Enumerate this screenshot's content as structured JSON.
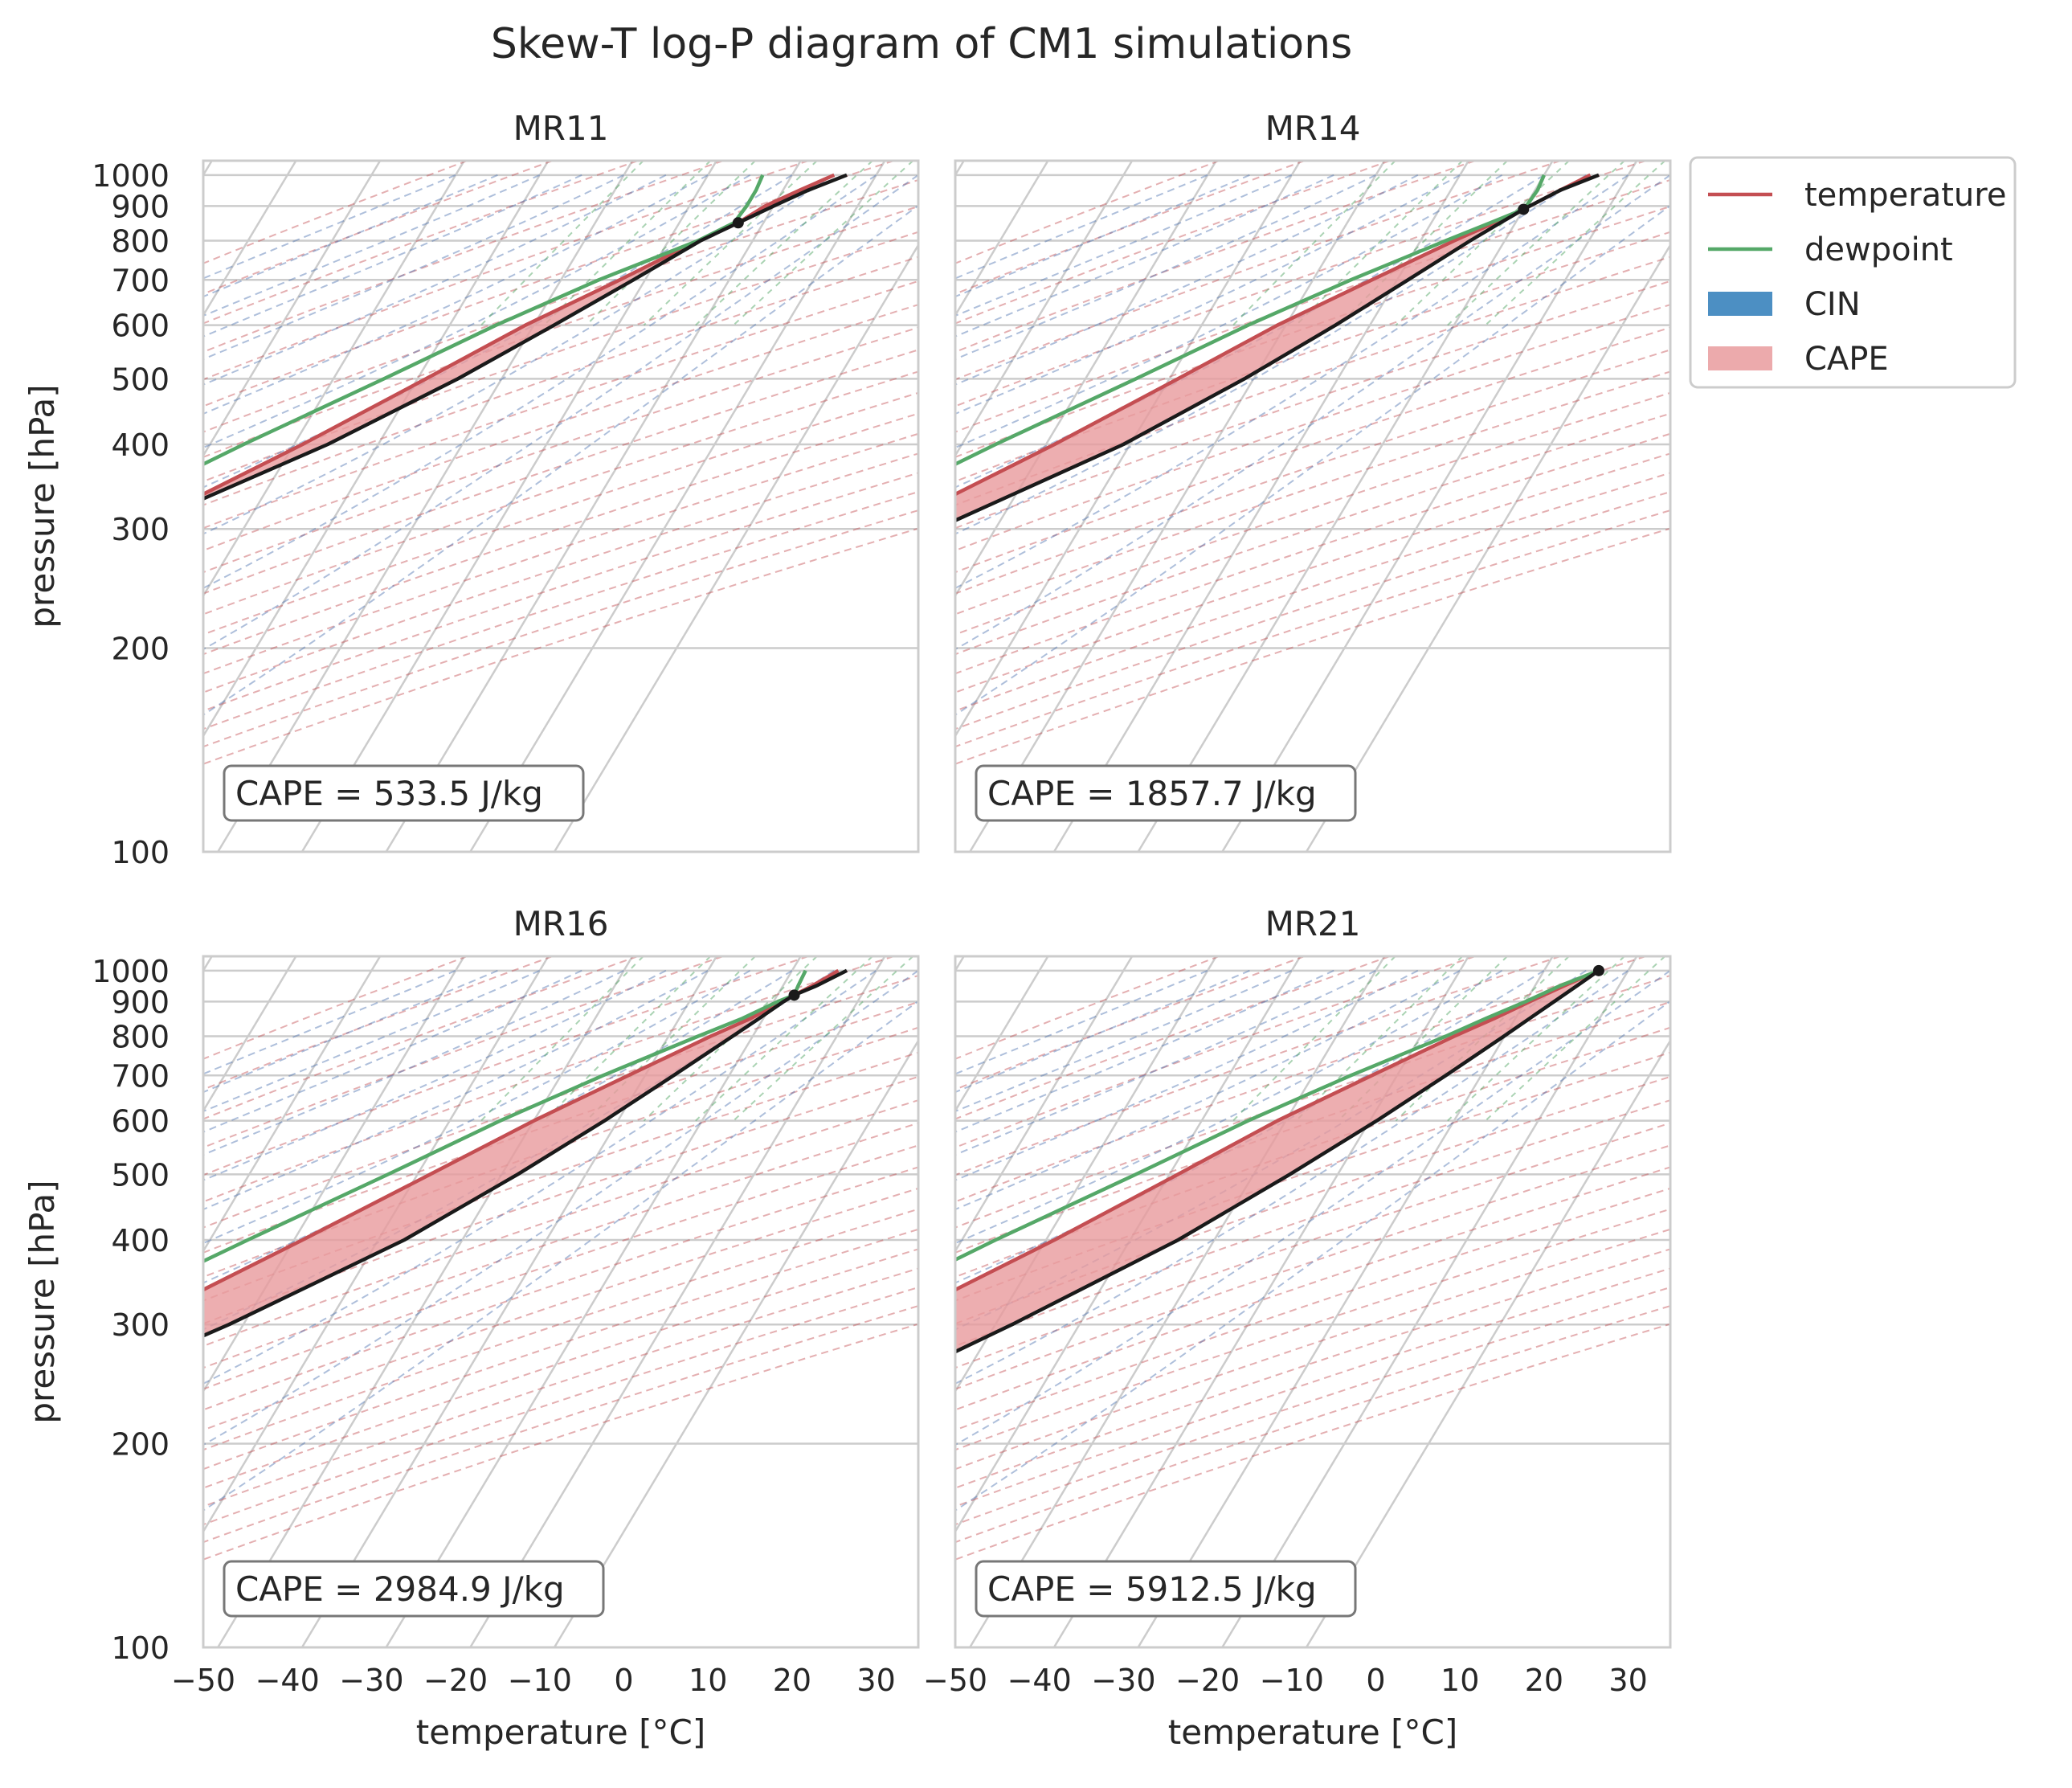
{
  "figure": {
    "title": "Skew-T log-P diagram of CM1 simulations"
  },
  "legend": {
    "placement": "right of top-right panel",
    "entries": [
      {
        "label": "temperature",
        "kind": "line",
        "color": "#c44e52"
      },
      {
        "label": "dewpoint",
        "kind": "line",
        "color": "#55a868"
      },
      {
        "label": "CIN",
        "kind": "patch",
        "color": "#4c8fc3"
      },
      {
        "label": "CAPE",
        "kind": "patch",
        "color": "#eba5a8"
      }
    ]
  },
  "colors": {
    "temperature": "#c44e52",
    "dewpoint": "#55a868",
    "parcel": "#1a1a1a",
    "cape_fill": "#e89a9c",
    "cape_edge": "#c44e52",
    "grid": "#cccccc",
    "dry_adiabat": "#c44e52",
    "moist_adiabat": "#4c72b0",
    "mixing_ratio": "#55a868",
    "frame": "#cccccc"
  },
  "chart_data": [
    {
      "type": "line",
      "title": "MR11",
      "xlabel": "",
      "ylabel": "pressure [hPa]",
      "xlim": [
        -50,
        35
      ],
      "ylim": [
        1050,
        100
      ],
      "y_scale": "log",
      "x_skewed": true,
      "grid": true,
      "xticks": [
        "−50",
        "−40",
        "−30",
        "−20",
        "−10",
        "0",
        "10",
        "20",
        "30"
      ],
      "xtick_values": [
        -50,
        -40,
        -30,
        -20,
        -10,
        0,
        10,
        20,
        30
      ],
      "yticks": [
        "100",
        "200",
        "300",
        "400",
        "500",
        "600",
        "700",
        "800",
        "900",
        "1000"
      ],
      "ytick_values": [
        100,
        200,
        300,
        400,
        500,
        600,
        700,
        800,
        900,
        1000
      ],
      "annotation": "CAPE = 533.5 J/kg",
      "lcl": {
        "p": 850,
        "T": 17
      },
      "series": [
        {
          "name": "temperature",
          "p": [
            1000,
            950,
            900,
            850,
            800,
            700,
            600,
            500,
            400,
            300,
            250,
            200,
            150,
            100
          ],
          "T": [
            25,
            22,
            19,
            17,
            13.5,
            7,
            -1,
            -9,
            -19,
            -33,
            -41,
            -50,
            -57,
            -66
          ]
        },
        {
          "name": "dewpoint",
          "p": [
            1000,
            950,
            900,
            850,
            800,
            700,
            600,
            500,
            400,
            300,
            250,
            200,
            150,
            100
          ],
          "T": [
            16.5,
            16.8,
            16.8,
            16.5,
            13.5,
            4.5,
            -4.5,
            -14,
            -26,
            -40.5,
            -48.5,
            -58,
            -66,
            -76
          ]
        },
        {
          "name": "parcel",
          "p": [
            1000,
            950,
            900,
            850,
            800,
            700,
            600,
            500,
            400,
            300,
            250,
            200,
            150,
            100
          ],
          "T": [
            26.5,
            23,
            20,
            17,
            13.8,
            8.6,
            2.4,
            -5.2,
            -16,
            -33,
            -44,
            -55,
            -67,
            -83
          ]
        }
      ]
    },
    {
      "type": "line",
      "title": "MR14",
      "xlabel": "",
      "ylabel": "",
      "xlim": [
        -50,
        35
      ],
      "ylim": [
        1050,
        100
      ],
      "y_scale": "log",
      "x_skewed": true,
      "grid": true,
      "xticks": [
        "−50",
        "−40",
        "−30",
        "−20",
        "−10",
        "0",
        "10",
        "20",
        "30"
      ],
      "xtick_values": [
        -50,
        -40,
        -30,
        -20,
        -10,
        0,
        10,
        20,
        30
      ],
      "yticks": [
        "100",
        "200",
        "300",
        "400",
        "500",
        "600",
        "700",
        "800",
        "900",
        "1000"
      ],
      "ytick_values": [
        100,
        200,
        300,
        400,
        500,
        600,
        700,
        800,
        900,
        1000
      ],
      "annotation": "CAPE = 1857.7 J/kg",
      "lcl": {
        "p": 890,
        "T": 20
      },
      "series": [
        {
          "name": "temperature",
          "p": [
            1000,
            950,
            900,
            890,
            850,
            800,
            700,
            600,
            500,
            400,
            300,
            250,
            200,
            150,
            100
          ],
          "T": [
            25.5,
            23,
            20.5,
            20,
            17.5,
            14,
            7,
            -1,
            -9,
            -19,
            -33,
            -41,
            -50,
            -57,
            -66
          ]
        },
        {
          "name": "dewpoint",
          "p": [
            1000,
            950,
            900,
            890,
            850,
            800,
            700,
            600,
            500,
            400,
            300,
            250,
            200,
            150,
            100
          ],
          "T": [
            20,
            20.3,
            20.1,
            20,
            17,
            13,
            4.5,
            -4.5,
            -14,
            -26,
            -40.5,
            -48.5,
            -58,
            -66,
            -76
          ]
        },
        {
          "name": "parcel",
          "p": [
            1000,
            950,
            900,
            890,
            850,
            800,
            700,
            600,
            500,
            400,
            300,
            250,
            200,
            150,
            100
          ],
          "T": [
            26.5,
            23,
            20.5,
            20,
            18.2,
            15.9,
            11.3,
            5.9,
            -1.1,
            -10.8,
            -27,
            -37.5,
            -49,
            -62,
            -79
          ]
        }
      ]
    },
    {
      "type": "line",
      "title": "MR16",
      "xlabel": "temperature [°C]",
      "ylabel": "pressure [hPa]",
      "xlim": [
        -50,
        35
      ],
      "ylim": [
        1050,
        100
      ],
      "y_scale": "log",
      "x_skewed": true,
      "grid": true,
      "xticks": [
        "−50",
        "−40",
        "−30",
        "−20",
        "−10",
        "0",
        "10",
        "20",
        "30"
      ],
      "xtick_values": [
        -50,
        -40,
        -30,
        -20,
        -10,
        0,
        10,
        20,
        30
      ],
      "yticks": [
        "100",
        "200",
        "300",
        "400",
        "500",
        "600",
        "700",
        "800",
        "900",
        "1000"
      ],
      "ytick_values": [
        100,
        200,
        300,
        400,
        500,
        600,
        700,
        800,
        900,
        1000
      ],
      "annotation": "CAPE = 2984.9 J/kg",
      "lcl": {
        "p": 920,
        "T": 22
      },
      "series": [
        {
          "name": "temperature",
          "p": [
            1000,
            950,
            920,
            900,
            850,
            800,
            700,
            600,
            500,
            400,
            300,
            250,
            200,
            150,
            100
          ],
          "T": [
            25.5,
            23.5,
            22,
            21,
            18.5,
            15,
            8,
            0,
            -8.5,
            -19,
            -33,
            -41,
            -50,
            -57,
            -66
          ]
        },
        {
          "name": "dewpoint",
          "p": [
            1000,
            950,
            920,
            900,
            850,
            800,
            700,
            600,
            500,
            400,
            300,
            250,
            200,
            150,
            100
          ],
          "T": [
            21.6,
            21.8,
            22,
            20.5,
            17.5,
            13.5,
            5,
            -4,
            -13.5,
            -25.5,
            -40.5,
            -48.5,
            -58,
            -66,
            -76
          ]
        },
        {
          "name": "parcel",
          "p": [
            1000,
            950,
            920,
            900,
            850,
            800,
            700,
            600,
            500,
            400,
            300,
            250,
            200,
            150,
            100
          ],
          "T": [
            26.5,
            24,
            22,
            21.2,
            19.5,
            17.6,
            13.4,
            8.4,
            1.9,
            -6.9,
            -21.7,
            -32.5,
            -44.5,
            -58,
            -75.5
          ]
        }
      ]
    },
    {
      "type": "line",
      "title": "MR21",
      "xlabel": "temperature [°C]",
      "ylabel": "",
      "xlim": [
        -50,
        35
      ],
      "ylim": [
        1050,
        100
      ],
      "y_scale": "log",
      "x_skewed": true,
      "grid": true,
      "xticks": [
        "−50",
        "−40",
        "−30",
        "−20",
        "−10",
        "0",
        "10",
        "20",
        "30"
      ],
      "xtick_values": [
        -50,
        -40,
        -30,
        -20,
        -10,
        0,
        10,
        20,
        30
      ],
      "yticks": [
        "100",
        "200",
        "300",
        "400",
        "500",
        "600",
        "700",
        "800",
        "900",
        "1000"
      ],
      "ytick_values": [
        100,
        200,
        300,
        400,
        500,
        600,
        700,
        800,
        900,
        1000
      ],
      "annotation": "CAPE = 5912.5 J/kg",
      "lcl": {
        "p": 1000,
        "T": 26.5
      },
      "series": [
        {
          "name": "temperature",
          "p": [
            1000,
            950,
            900,
            850,
            800,
            700,
            600,
            500,
            400,
            300,
            250,
            200,
            150,
            100
          ],
          "T": [
            26.5,
            23.5,
            20.5,
            17.5,
            14,
            7,
            -1,
            -9,
            -19,
            -33,
            -41,
            -50,
            -57,
            -66
          ]
        },
        {
          "name": "dewpoint",
          "p": [
            1000,
            950,
            900,
            850,
            800,
            700,
            600,
            500,
            400,
            300,
            250,
            200,
            150,
            100
          ],
          "T": [
            26.5,
            23,
            20,
            16.5,
            13,
            4.5,
            -4.5,
            -14,
            -26,
            -40.5,
            -48.5,
            -58,
            -66,
            -76
          ]
        },
        {
          "name": "parcel",
          "p": [
            1000,
            950,
            900,
            850,
            800,
            700,
            600,
            500,
            400,
            300,
            250,
            200,
            150,
            100
          ],
          "T": [
            26.5,
            25,
            23.4,
            21.7,
            19.9,
            15.8,
            10.8,
            4.3,
            -4.3,
            -18,
            -27.5,
            -40,
            -55,
            -73
          ]
        }
      ]
    }
  ]
}
